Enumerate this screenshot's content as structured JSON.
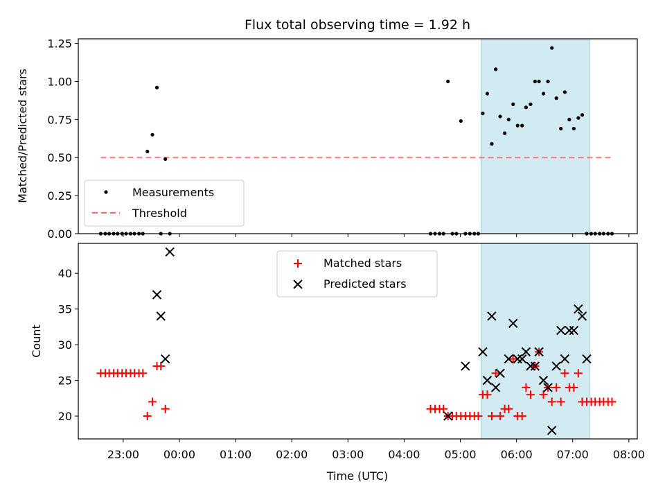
{
  "chart_data": [
    {
      "type": "scatter",
      "title": "Flux total observing time = 1.92 h",
      "ylabel": "Matched/Predicted stars",
      "ylim": [
        0,
        1.28
      ],
      "yticks": [
        0,
        0.25,
        0.5,
        0.75,
        1.0,
        1.25
      ],
      "ytick_labels": [
        "0.00",
        "0.25",
        "0.50",
        "0.75",
        "1.00",
        "1.25"
      ],
      "xlim": [
        -1.8,
        8.15
      ],
      "grid": false,
      "legend_position": "lower-left",
      "highlight_span": [
        5.37,
        7.3
      ],
      "highlight_color": "#add8e6",
      "threshold": {
        "name": "Threshold",
        "value": 0.5,
        "x_range": [
          -1.4,
          7.7
        ],
        "color": "#ff6b6b"
      },
      "series": [
        {
          "name": "Measurements",
          "marker": "dot",
          "color": "#000000",
          "x": [
            -1.4,
            -1.32,
            -1.25,
            -1.17,
            -1.1,
            -1.02,
            -0.95,
            -0.87,
            -0.8,
            -0.72,
            -0.65,
            -0.57,
            -0.48,
            -0.4,
            -0.33,
            -0.25,
            -0.17,
            4.47,
            4.55,
            4.63,
            4.7,
            4.78,
            4.86,
            4.93,
            5.01,
            5.09,
            5.17,
            5.25,
            5.32,
            5.4,
            5.48,
            5.56,
            5.63,
            5.71,
            5.79,
            5.86,
            5.94,
            6.02,
            6.1,
            6.17,
            6.25,
            6.33,
            6.4,
            6.48,
            6.56,
            6.63,
            6.71,
            6.79,
            6.86,
            6.94,
            7.02,
            7.1,
            7.17,
            7.25,
            7.33,
            7.4,
            7.48,
            7.55,
            7.63,
            7.7
          ],
          "y": [
            0,
            0,
            0,
            0,
            0,
            0,
            0,
            0,
            0,
            0,
            0,
            0.54,
            0.65,
            0.96,
            0,
            0.49,
            0,
            0,
            0,
            0,
            0,
            1.0,
            0,
            0,
            0.74,
            0,
            0,
            0,
            0,
            0.79,
            0.92,
            0.59,
            1.08,
            0.77,
            0.66,
            0.75,
            0.85,
            0.71,
            0.71,
            0.83,
            0.85,
            1.0,
            1.0,
            0.92,
            1.0,
            1.22,
            0.89,
            0.69,
            0.93,
            0.75,
            0.69,
            0.76,
            0.78,
            0,
            0,
            0,
            0,
            0,
            0,
            0
          ]
        }
      ]
    },
    {
      "type": "scatter",
      "ylabel": "Count",
      "xlabel": "Time (UTC)",
      "ylim": [
        16.8,
        44.2
      ],
      "yticks": [
        20,
        25,
        30,
        35,
        40
      ],
      "ytick_labels": [
        "20",
        "25",
        "30",
        "35",
        "40"
      ],
      "xlim": [
        -1.8,
        8.15
      ],
      "xticks": [
        -1,
        0,
        1,
        2,
        3,
        4,
        5,
        6,
        7,
        8
      ],
      "xtick_labels": [
        "23:00",
        "00:00",
        "01:00",
        "02:00",
        "03:00",
        "04:00",
        "05:00",
        "06:00",
        "07:00",
        "08:00"
      ],
      "grid": false,
      "legend_position": "top-center",
      "highlight_span": [
        5.37,
        7.3
      ],
      "highlight_color": "#add8e6",
      "series": [
        {
          "name": "Matched stars",
          "marker": "plus",
          "color": "#ff0000",
          "x": [
            -1.4,
            -1.32,
            -1.25,
            -1.17,
            -1.1,
            -1.02,
            -0.95,
            -0.87,
            -0.8,
            -0.72,
            -0.65,
            -0.57,
            -0.48,
            -0.4,
            -0.33,
            -0.25,
            4.47,
            4.55,
            4.63,
            4.7,
            4.78,
            4.86,
            4.93,
            5.01,
            5.09,
            5.17,
            5.25,
            5.32,
            5.4,
            5.48,
            5.56,
            5.63,
            5.71,
            5.79,
            5.86,
            5.94,
            6.02,
            6.1,
            6.17,
            6.25,
            6.33,
            6.4,
            6.48,
            6.56,
            6.63,
            6.71,
            6.79,
            6.86,
            6.94,
            7.02,
            7.1,
            7.17,
            7.25,
            7.33,
            7.4,
            7.48,
            7.55,
            7.63,
            7.7
          ],
          "y": [
            26,
            26,
            26,
            26,
            26,
            26,
            26,
            26,
            26,
            26,
            26,
            20,
            22,
            27,
            27,
            21,
            21,
            21,
            21,
            21,
            20,
            20,
            20,
            20,
            20,
            20,
            20,
            20,
            23,
            23,
            20,
            26,
            20,
            21,
            21,
            28,
            20,
            20,
            24,
            23,
            27,
            29,
            23,
            24,
            22,
            24,
            22,
            26,
            24,
            24,
            26,
            22,
            22,
            22,
            22,
            22,
            22,
            22,
            22
          ]
        },
        {
          "name": "Predicted stars",
          "marker": "x",
          "color": "#000000",
          "x": [
            -0.4,
            -0.33,
            -0.25,
            -0.17,
            4.78,
            5.09,
            5.4,
            5.48,
            5.56,
            5.63,
            5.71,
            5.86,
            5.94,
            6.02,
            6.1,
            6.17,
            6.25,
            6.33,
            6.4,
            6.48,
            6.56,
            6.63,
            6.71,
            6.79,
            6.86,
            6.94,
            7.02,
            7.1,
            7.17,
            7.25
          ],
          "y": [
            37,
            34,
            28,
            43,
            20,
            27,
            29,
            25,
            34,
            24,
            26,
            28,
            33,
            28,
            28,
            29,
            27,
            27,
            29,
            25,
            24,
            18,
            27,
            32,
            28,
            32,
            32,
            35,
            34,
            28
          ]
        }
      ]
    }
  ]
}
